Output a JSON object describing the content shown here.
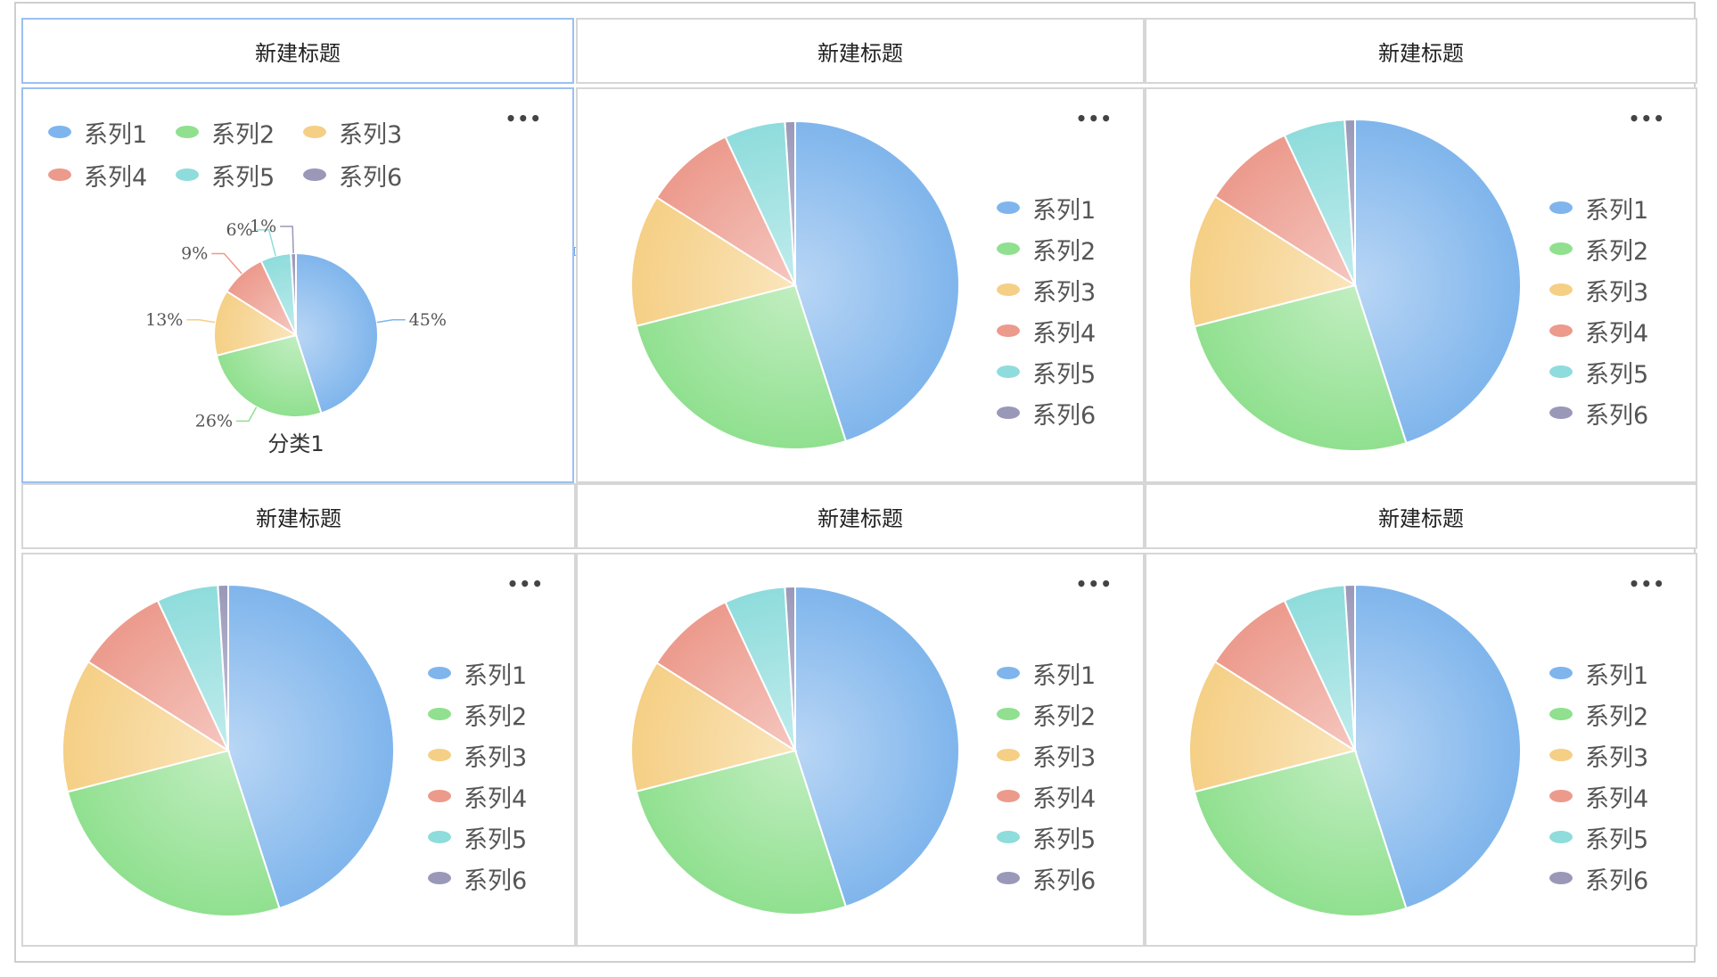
{
  "titles": {
    "c1": "新建标题",
    "c2": "新建标题",
    "c3": "新建标题",
    "c4": "新建标题",
    "c5": "新建标题",
    "c6": "新建标题"
  },
  "more_label": "•••",
  "icons": {
    "edit": "edit-icon",
    "more": "more-icon"
  },
  "legend_items": [
    "系列1",
    "系列2",
    "系列3",
    "系列4",
    "系列5",
    "系列6"
  ],
  "colors": [
    "#7fb5ec",
    "#90e08f",
    "#f5cf85",
    "#ec9a8c",
    "#8fdcdc",
    "#9a98b8"
  ],
  "chart_data": [
    {
      "type": "pie",
      "title": "新建标题",
      "categories": [
        "分类1"
      ],
      "series": [
        {
          "name": "系列1",
          "values": [
            45
          ]
        },
        {
          "name": "系列2",
          "values": [
            26
          ]
        },
        {
          "name": "系列3",
          "values": [
            13
          ]
        },
        {
          "name": "系列4",
          "values": [
            9
          ]
        },
        {
          "name": "系列5",
          "values": [
            6
          ]
        },
        {
          "name": "系列6",
          "values": [
            1
          ]
        }
      ],
      "slice_labels": [
        "45%",
        "26%",
        "13%",
        "9%",
        "6%",
        "1%"
      ],
      "legend": "top",
      "show_labels": true
    },
    {
      "type": "pie",
      "title": "新建标题",
      "series": [
        {
          "name": "系列1",
          "values": [
            45
          ]
        },
        {
          "name": "系列2",
          "values": [
            26
          ]
        },
        {
          "name": "系列3",
          "values": [
            13
          ]
        },
        {
          "name": "系列4",
          "values": [
            9
          ]
        },
        {
          "name": "系列5",
          "values": [
            6
          ]
        },
        {
          "name": "系列6",
          "values": [
            1
          ]
        }
      ],
      "legend": "right"
    },
    {
      "type": "pie",
      "title": "新建标题",
      "series": [
        {
          "name": "系列1",
          "values": [
            45
          ]
        },
        {
          "name": "系列2",
          "values": [
            26
          ]
        },
        {
          "name": "系列3",
          "values": [
            13
          ]
        },
        {
          "name": "系列4",
          "values": [
            9
          ]
        },
        {
          "name": "系列5",
          "values": [
            6
          ]
        },
        {
          "name": "系列6",
          "values": [
            1
          ]
        }
      ],
      "legend": "right"
    },
    {
      "type": "pie",
      "title": "新建标题",
      "series": [
        {
          "name": "系列1",
          "values": [
            45
          ]
        },
        {
          "name": "系列2",
          "values": [
            26
          ]
        },
        {
          "name": "系列3",
          "values": [
            13
          ]
        },
        {
          "name": "系列4",
          "values": [
            9
          ]
        },
        {
          "name": "系列5",
          "values": [
            6
          ]
        },
        {
          "name": "系列6",
          "values": [
            1
          ]
        }
      ],
      "legend": "right"
    },
    {
      "type": "pie",
      "title": "新建标题",
      "series": [
        {
          "name": "系列1",
          "values": [
            45
          ]
        },
        {
          "name": "系列2",
          "values": [
            26
          ]
        },
        {
          "name": "系列3",
          "values": [
            13
          ]
        },
        {
          "name": "系列4",
          "values": [
            9
          ]
        },
        {
          "name": "系列5",
          "values": [
            6
          ]
        },
        {
          "name": "系列6",
          "values": [
            1
          ]
        }
      ],
      "legend": "right"
    },
    {
      "type": "pie",
      "title": "新建标题",
      "series": [
        {
          "name": "系列1",
          "values": [
            45
          ]
        },
        {
          "name": "系列2",
          "values": [
            26
          ]
        },
        {
          "name": "系列3",
          "values": [
            13
          ]
        },
        {
          "name": "系列4",
          "values": [
            9
          ]
        },
        {
          "name": "系列5",
          "values": [
            6
          ]
        },
        {
          "name": "系列6",
          "values": [
            1
          ]
        }
      ],
      "legend": "right"
    }
  ]
}
